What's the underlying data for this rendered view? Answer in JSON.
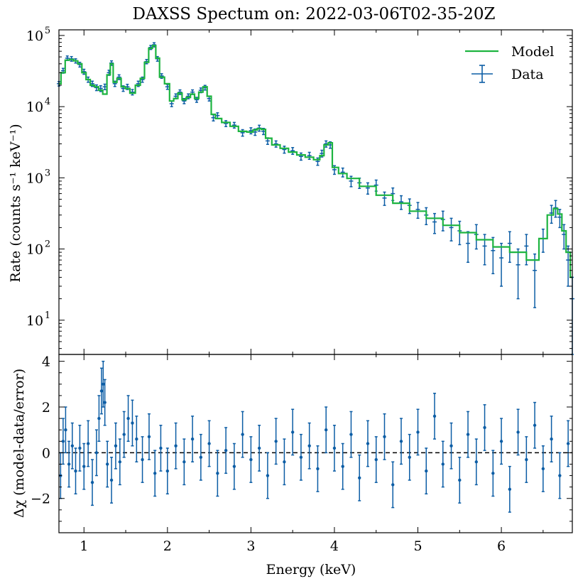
{
  "chart_data": [
    {
      "type": "line",
      "title": "DAXSS Spectum on: 2022-03-06T02-35-20Z",
      "xlabel": "",
      "ylabel": "Rate (counts s⁻¹ keV⁻¹)",
      "yscale": "log",
      "xlim": [
        0.7,
        6.85
      ],
      "ylim": [
        3.3,
        120000
      ],
      "y_ticks": [
        {
          "value": 10,
          "base": "10",
          "exp": "1"
        },
        {
          "value": 100,
          "base": "10",
          "exp": "2"
        },
        {
          "value": 1000,
          "base": "10",
          "exp": "3"
        },
        {
          "value": 10000,
          "base": "10",
          "exp": "4"
        },
        {
          "value": 100000,
          "base": "10",
          "exp": "5"
        }
      ],
      "legend": {
        "position": "top-right",
        "entries": [
          "Model",
          "Data"
        ]
      },
      "colors": {
        "model": "#1db440",
        "data": "#0c5da5"
      },
      "series": [
        {
          "name": "Model",
          "x": [
            0.7,
            0.75,
            0.8,
            0.85,
            0.9,
            0.95,
            1.0,
            1.05,
            1.1,
            1.15,
            1.2,
            1.25,
            1.3,
            1.33,
            1.37,
            1.42,
            1.47,
            1.52,
            1.58,
            1.65,
            1.7,
            1.75,
            1.8,
            1.84,
            1.88,
            1.93,
            2.0,
            2.05,
            2.1,
            2.15,
            2.2,
            2.25,
            2.3,
            2.35,
            2.4,
            2.45,
            2.5,
            2.55,
            2.6,
            2.7,
            2.8,
            2.9,
            3.0,
            3.05,
            3.1,
            3.15,
            3.2,
            3.3,
            3.4,
            3.5,
            3.6,
            3.7,
            3.8,
            3.85,
            3.9,
            3.95,
            4.0,
            4.1,
            4.2,
            4.4,
            4.6,
            4.8,
            5.0,
            5.2,
            5.4,
            5.6,
            5.8,
            6.0,
            6.2,
            6.4,
            6.5,
            6.6,
            6.65,
            6.7,
            6.75,
            6.8,
            6.85
          ],
          "y": [
            21000,
            30000,
            45000,
            46000,
            44000,
            40000,
            30000,
            24000,
            20000,
            19000,
            17000,
            15000,
            28000,
            40000,
            22000,
            25000,
            19000,
            18000,
            15500,
            20000,
            25000,
            42000,
            66000,
            72000,
            48000,
            26000,
            21000,
            12000,
            13000,
            15500,
            12500,
            13500,
            15000,
            13000,
            16000,
            19000,
            14000,
            7800,
            6800,
            6000,
            5300,
            4500,
            4400,
            4700,
            4900,
            4800,
            3600,
            2900,
            2600,
            2300,
            2100,
            1950,
            1800,
            2050,
            2900,
            3100,
            1400,
            1150,
            980,
            760,
            570,
            440,
            340,
            270,
            215,
            170,
            135,
            107,
            90,
            70,
            140,
            300,
            370,
            310,
            180,
            90,
            40
          ]
        },
        {
          "name": "Data",
          "x": [
            0.7,
            0.75,
            0.8,
            0.85,
            0.9,
            0.95,
            1.0,
            1.05,
            1.1,
            1.15,
            1.2,
            1.25,
            1.3,
            1.33,
            1.37,
            1.42,
            1.47,
            1.52,
            1.58,
            1.65,
            1.7,
            1.75,
            1.8,
            1.84,
            1.88,
            1.93,
            2.0,
            2.05,
            2.1,
            2.15,
            2.2,
            2.25,
            2.3,
            2.35,
            2.4,
            2.45,
            2.5,
            2.55,
            2.6,
            2.7,
            2.8,
            2.9,
            3.0,
            3.05,
            3.1,
            3.15,
            3.2,
            3.3,
            3.4,
            3.5,
            3.6,
            3.7,
            3.8,
            3.85,
            3.9,
            3.95,
            4.0,
            4.1,
            4.2,
            4.3,
            4.4,
            4.5,
            4.6,
            4.7,
            4.8,
            4.9,
            5.0,
            5.1,
            5.2,
            5.3,
            5.4,
            5.5,
            5.6,
            5.7,
            5.8,
            5.9,
            6.0,
            6.1,
            6.2,
            6.3,
            6.4,
            6.5,
            6.6,
            6.65,
            6.7,
            6.75,
            6.8,
            6.85
          ],
          "y": [
            21000,
            32000,
            48000,
            47000,
            44000,
            39000,
            31000,
            24000,
            21000,
            18500,
            18000,
            19000,
            30000,
            41000,
            21000,
            26000,
            18000,
            19000,
            16000,
            21000,
            24000,
            43000,
            68000,
            74000,
            47000,
            27000,
            19000,
            11000,
            14000,
            16000,
            12000,
            14000,
            16000,
            12500,
            17000,
            18500,
            13000,
            7000,
            7500,
            5800,
            5500,
            4300,
            4600,
            4400,
            5000,
            4500,
            3300,
            3000,
            2500,
            2400,
            2000,
            2050,
            1700,
            2200,
            3000,
            2900,
            1300,
            1200,
            900,
            850,
            720,
            790,
            520,
            600,
            460,
            410,
            360,
            300,
            240,
            260,
            200,
            180,
            120,
            160,
            110,
            95,
            75,
            120,
            60,
            110,
            50,
            140,
            320,
            380,
            280,
            160,
            70,
            20
          ],
          "y_err": [
            1500,
            2500,
            3500,
            3500,
            3000,
            3000,
            2500,
            2000,
            1800,
            1700,
            1700,
            1700,
            2500,
            3000,
            1800,
            2000,
            1600,
            1600,
            1400,
            1800,
            2000,
            3000,
            4500,
            5000,
            3500,
            2000,
            1500,
            1000,
            1100,
            1200,
            1000,
            1100,
            1200,
            1000,
            1300,
            1400,
            1000,
            700,
            700,
            550,
            500,
            450,
            450,
            450,
            480,
            450,
            350,
            300,
            280,
            260,
            230,
            230,
            200,
            240,
            300,
            300,
            180,
            170,
            150,
            140,
            130,
            140,
            110,
            120,
            100,
            95,
            90,
            80,
            75,
            80,
            70,
            65,
            55,
            60,
            50,
            50,
            45,
            55,
            40,
            50,
            35,
            50,
            90,
            100,
            80,
            60,
            40,
            20
          ]
        }
      ]
    },
    {
      "type": "scatter",
      "xlabel": "Energy (keV)",
      "ylabel": "Δχ (model-data/error)",
      "xlim": [
        0.7,
        6.85
      ],
      "ylim": [
        -3.5,
        4.3
      ],
      "x_ticks": [
        "1",
        "2",
        "3",
        "4",
        "5",
        "6"
      ],
      "y_ticks": [
        "−2",
        "0",
        "2",
        "4"
      ],
      "reference_line": 0,
      "color": "#0c5da5",
      "series": [
        {
          "name": "Residuals",
          "x": [
            0.72,
            0.75,
            0.78,
            0.82,
            0.86,
            0.9,
            0.95,
            1.0,
            1.05,
            1.1,
            1.15,
            1.18,
            1.21,
            1.23,
            1.25,
            1.28,
            1.33,
            1.38,
            1.43,
            1.48,
            1.53,
            1.58,
            1.63,
            1.7,
            1.78,
            1.85,
            1.92,
            2.0,
            2.1,
            2.2,
            2.3,
            2.4,
            2.5,
            2.6,
            2.7,
            2.8,
            2.9,
            3.0,
            3.1,
            3.2,
            3.3,
            3.4,
            3.5,
            3.6,
            3.7,
            3.8,
            3.9,
            4.0,
            4.1,
            4.2,
            4.3,
            4.4,
            4.5,
            4.6,
            4.7,
            4.8,
            4.9,
            5.0,
            5.1,
            5.2,
            5.3,
            5.4,
            5.5,
            5.6,
            5.7,
            5.8,
            5.9,
            6.0,
            6.1,
            6.2,
            6.3,
            6.4,
            6.5,
            6.6,
            6.7,
            6.8
          ],
          "y": [
            -1.0,
            0.5,
            1.0,
            -0.5,
            0.3,
            -0.8,
            0.2,
            -0.6,
            0.4,
            -1.3,
            0.0,
            1.5,
            2.7,
            3.0,
            2.2,
            -0.5,
            -1.2,
            0.3,
            -0.4,
            0.8,
            1.5,
            1.3,
            0.6,
            -0.3,
            0.7,
            -0.9,
            0.2,
            -0.8,
            0.3,
            -0.4,
            0.6,
            -0.2,
            0.4,
            -0.9,
            0.1,
            -0.6,
            0.8,
            -0.3,
            0.2,
            -1.0,
            0.5,
            -0.4,
            0.9,
            -0.2,
            0.3,
            -0.7,
            1.0,
            0.2,
            -0.6,
            0.8,
            -1.1,
            0.4,
            -0.3,
            0.7,
            -1.4,
            0.5,
            -0.2,
            0.9,
            -0.8,
            1.6,
            -0.5,
            0.3,
            -1.2,
            0.8,
            -0.4,
            1.1,
            -0.9,
            0.5,
            -1.6,
            0.9,
            -0.3,
            1.2,
            -0.7,
            0.6,
            -1.0,
            0.4
          ],
          "y_err": [
            1,
            1,
            1,
            1,
            1,
            1,
            1,
            1,
            1,
            1,
            1,
            1,
            1,
            1,
            1,
            1,
            1,
            1,
            1,
            1,
            1,
            1,
            1,
            1,
            1,
            1,
            1,
            1,
            1,
            1,
            1,
            1,
            1,
            1,
            1,
            1,
            1,
            1,
            1,
            1,
            1,
            1,
            1,
            1,
            1,
            1,
            1,
            1,
            1,
            1,
            1,
            1,
            1,
            1,
            1,
            1,
            1,
            1,
            1,
            1,
            1,
            1,
            1,
            1,
            1,
            1,
            1,
            1,
            1,
            1,
            1,
            1,
            1,
            1,
            1,
            1
          ]
        }
      ]
    }
  ]
}
